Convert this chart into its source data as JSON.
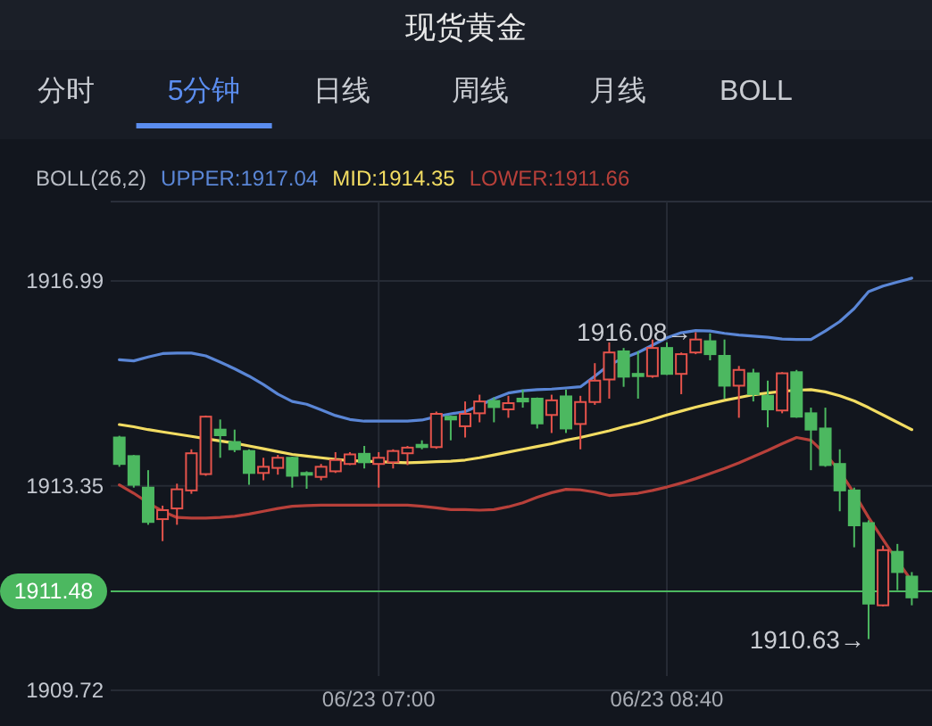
{
  "chart_data": {
    "type": "candlestick",
    "title": "现货黄金",
    "legend_title": "BOLL(26,2)",
    "legend": "top",
    "annotations": [
      "分时",
      "5分钟",
      "日线",
      "周线",
      "月线",
      "BOLL",
      "1916.08→",
      "1910.63→"
    ],
    "categories": [
      null,
      null,
      null,
      null,
      null,
      null,
      null,
      null,
      null,
      null,
      null,
      null,
      null,
      null,
      null,
      null,
      null,
      null,
      "06/23 07:00",
      null,
      null,
      null,
      null,
      null,
      null,
      null,
      null,
      null,
      null,
      null,
      null,
      null,
      null,
      null,
      null,
      null,
      null,
      null,
      "06/23 08:40",
      null,
      null,
      null,
      null,
      null,
      null,
      null,
      null,
      null,
      null,
      null,
      null,
      null,
      null,
      null,
      null,
      null
    ],
    "ohlc": [
      [
        1914.21,
        1914.24,
        1913.69,
        1913.74
      ],
      [
        1913.88,
        1913.9,
        1913.32,
        1913.37
      ],
      [
        1913.32,
        1913.63,
        1912.66,
        1912.71
      ],
      [
        1912.76,
        1913.0,
        1912.37,
        1912.92
      ],
      [
        1912.95,
        1913.39,
        1912.66,
        1913.29
      ],
      [
        1913.27,
        1914.0,
        1913.21,
        1913.93
      ],
      [
        1913.56,
        1914.6,
        1913.53,
        1914.58
      ],
      [
        1914.35,
        1914.53,
        1913.85,
        1914.25
      ],
      [
        1914.13,
        1914.35,
        1913.95,
        1914.0
      ],
      [
        1913.97,
        1914.0,
        1913.37,
        1913.58
      ],
      [
        1913.58,
        1913.85,
        1913.45,
        1913.69
      ],
      [
        1913.67,
        1913.9,
        1913.55,
        1913.85
      ],
      [
        1913.85,
        1913.87,
        1913.32,
        1913.53
      ],
      [
        1913.58,
        1913.61,
        1913.3,
        1913.55
      ],
      [
        1913.51,
        1913.74,
        1913.45,
        1913.69
      ],
      [
        1913.61,
        1913.95,
        1913.58,
        1913.81
      ],
      [
        1913.74,
        1913.95,
        1913.72,
        1913.91
      ],
      [
        1913.92,
        1914.06,
        1913.66,
        1913.77
      ],
      [
        1913.74,
        1913.95,
        1913.32,
        1913.85
      ],
      [
        1913.77,
        1914.0,
        1913.66,
        1913.97
      ],
      [
        1913.93,
        1914.06,
        1913.72,
        1914.03
      ],
      [
        1914.08,
        1914.16,
        1914.0,
        1914.04
      ],
      [
        1914.04,
        1914.67,
        1914.01,
        1914.63
      ],
      [
        1914.58,
        1914.6,
        1914.16,
        1914.53
      ],
      [
        1914.41,
        1914.85,
        1914.21,
        1914.63
      ],
      [
        1914.64,
        1914.97,
        1914.48,
        1914.85
      ],
      [
        1914.86,
        1914.92,
        1914.48,
        1914.75
      ],
      [
        1914.71,
        1914.95,
        1914.56,
        1914.82
      ],
      [
        1914.9,
        1915.06,
        1914.74,
        1914.85
      ],
      [
        1914.9,
        1914.92,
        1914.37,
        1914.46
      ],
      [
        1914.61,
        1914.97,
        1914.29,
        1914.87
      ],
      [
        1914.94,
        1915.06,
        1914.29,
        1914.37
      ],
      [
        1914.45,
        1914.95,
        1914.0,
        1914.84
      ],
      [
        1914.84,
        1915.53,
        1914.79,
        1915.22
      ],
      [
        1915.24,
        1915.9,
        1914.9,
        1915.72
      ],
      [
        1915.74,
        1915.8,
        1915.11,
        1915.29
      ],
      [
        1915.34,
        1915.74,
        1914.9,
        1915.3
      ],
      [
        1915.3,
        1915.95,
        1915.27,
        1915.8
      ],
      [
        1915.8,
        1915.9,
        1915.32,
        1915.34
      ],
      [
        1915.34,
        1915.72,
        1914.98,
        1915.69
      ],
      [
        1915.72,
        1916.08,
        1915.69,
        1915.95
      ],
      [
        1915.92,
        1916.06,
        1915.58,
        1915.69
      ],
      [
        1915.66,
        1915.95,
        1914.9,
        1915.13
      ],
      [
        1915.13,
        1915.48,
        1914.56,
        1915.41
      ],
      [
        1915.35,
        1915.43,
        1914.85,
        1914.98
      ],
      [
        1914.95,
        1915.22,
        1914.39,
        1914.71
      ],
      [
        1914.69,
        1915.37,
        1914.64,
        1915.35
      ],
      [
        1915.37,
        1915.41,
        1914.56,
        1914.58
      ],
      [
        1914.64,
        1914.74,
        1913.63,
        1914.35
      ],
      [
        1914.37,
        1914.74,
        1913.69,
        1913.72
      ],
      [
        1913.74,
        1914.0,
        1912.9,
        1913.27
      ],
      [
        1913.27,
        1913.32,
        1912.26,
        1912.65
      ],
      [
        1912.69,
        1912.74,
        1910.63,
        1911.26
      ],
      [
        1911.23,
        1912.29,
        1911.21,
        1912.21
      ],
      [
        1912.18,
        1912.32,
        1911.5,
        1911.82
      ],
      [
        1911.74,
        1911.82,
        1911.23,
        1911.37
      ]
    ],
    "colors": [
      "#4cb860",
      "#4cb860",
      "#4cb860",
      "#e5534b",
      "#e5534b",
      "#e5534b",
      "#e5534b",
      "#4cb860",
      "#4cb860",
      "#4cb860",
      "#e5534b",
      "#e5534b",
      "#4cb860",
      "#4cb860",
      "#e5534b",
      "#e5534b",
      "#e5534b",
      "#4cb860",
      "#e5534b",
      "#e5534b",
      "#e5534b",
      "#4cb860",
      "#e5534b",
      "#4cb860",
      "#e5534b",
      "#e5534b",
      "#4cb860",
      "#e5534b",
      "#4cb860",
      "#4cb860",
      "#e5534b",
      "#4cb860",
      "#e5534b",
      "#e5534b",
      "#e5534b",
      "#4cb860",
      "#4cb860",
      "#e5534b",
      "#4cb860",
      "#e5534b",
      "#e5534b",
      "#4cb860",
      "#4cb860",
      "#e5534b",
      "#4cb860",
      "#4cb860",
      "#e5534b",
      "#4cb860",
      "#4cb860",
      "#4cb860",
      "#4cb860",
      "#4cb860",
      "#4cb860",
      "#e5534b",
      "#4cb860",
      "#4cb860"
    ],
    "series": [
      {
        "type": "line",
        "name": "UPPER:1917.04",
        "color": "#5a86d6",
        "values": [
          1915.59,
          1915.57,
          1915.64,
          1915.7,
          1915.71,
          1915.71,
          1915.66,
          1915.55,
          1915.43,
          1915.3,
          1915.15,
          1914.98,
          1914.85,
          1914.8,
          1914.7,
          1914.6,
          1914.53,
          1914.5,
          1914.5,
          1914.5,
          1914.5,
          1914.52,
          1914.58,
          1914.63,
          1914.67,
          1914.78,
          1914.9,
          1915.0,
          1915.04,
          1915.06,
          1915.07,
          1915.09,
          1915.11,
          1915.3,
          1915.5,
          1915.62,
          1915.72,
          1915.85,
          1915.98,
          1916.07,
          1916.11,
          1916.1,
          1916.06,
          1916.03,
          1916.01,
          1915.99,
          1915.96,
          1915.95,
          1915.95,
          1916.1,
          1916.27,
          1916.5,
          1916.8,
          1916.9,
          1916.97,
          1917.04
        ]
      },
      {
        "type": "line",
        "name": "MID:1914.35",
        "color": "#f2dc62",
        "values": [
          1914.44,
          1914.4,
          1914.35,
          1914.31,
          1914.27,
          1914.23,
          1914.19,
          1914.15,
          1914.11,
          1914.06,
          1914.01,
          1913.96,
          1913.91,
          1913.88,
          1913.85,
          1913.82,
          1913.8,
          1913.79,
          1913.78,
          1913.77,
          1913.76,
          1913.77,
          1913.78,
          1913.79,
          1913.81,
          1913.85,
          1913.9,
          1913.95,
          1914.0,
          1914.05,
          1914.1,
          1914.16,
          1914.21,
          1914.27,
          1914.33,
          1914.4,
          1914.46,
          1914.53,
          1914.61,
          1914.68,
          1914.75,
          1914.81,
          1914.87,
          1914.92,
          1914.97,
          1915.0,
          1915.03,
          1915.05,
          1915.06,
          1915.02,
          1914.95,
          1914.86,
          1914.74,
          1914.61,
          1914.48,
          1914.35
        ]
      },
      {
        "type": "line",
        "name": "LOWER:1911.66",
        "color": "#b8403a",
        "values": [
          1913.37,
          1913.22,
          1913.05,
          1912.9,
          1912.79,
          1912.78,
          1912.78,
          1912.79,
          1912.81,
          1912.85,
          1912.9,
          1912.95,
          1912.99,
          1913.0,
          1913.01,
          1913.01,
          1913.01,
          1913.01,
          1913.01,
          1913.01,
          1913.01,
          1912.99,
          1912.96,
          1912.93,
          1912.93,
          1912.92,
          1912.93,
          1912.98,
          1913.05,
          1913.15,
          1913.23,
          1913.29,
          1913.28,
          1913.24,
          1913.18,
          1913.2,
          1913.22,
          1913.27,
          1913.33,
          1913.4,
          1913.48,
          1913.57,
          1913.66,
          1913.76,
          1913.87,
          1913.98,
          1914.1,
          1914.21,
          1914.16,
          1913.92,
          1913.61,
          1913.22,
          1912.79,
          1912.4,
          1912.02,
          1911.66
        ]
      }
    ],
    "ylim": [
      1909.72,
      1918.4
    ],
    "yticks": [
      1916.99,
      1913.35,
      1909.72
    ],
    "grid": true,
    "ref_lines": [
      {
        "axis": "y",
        "value": 1911.48,
        "label": "1911.48",
        "color": "#4cb860"
      }
    ]
  }
}
